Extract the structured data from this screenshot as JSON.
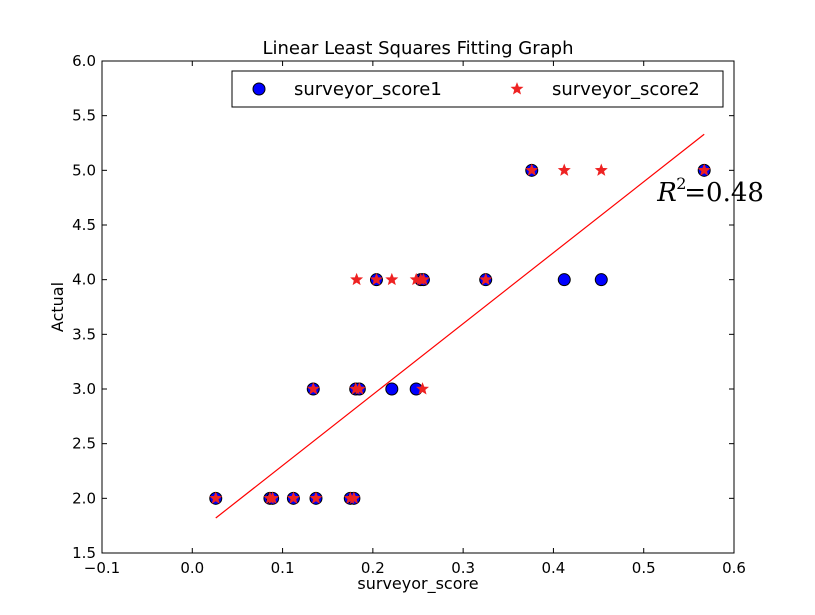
{
  "chart_data": {
    "type": "scatter",
    "title": "Linear Least Squares Fitting Graph",
    "xlabel": "surveyor_score",
    "ylabel": "Actual",
    "xlim": [
      -0.1,
      0.6
    ],
    "ylim": [
      1.5,
      6.0
    ],
    "xticks": [
      "−0.1",
      "0.0",
      "0.1",
      "0.2",
      "0.3",
      "0.4",
      "0.5",
      "0.6"
    ],
    "yticks": [
      "1.5",
      "2.0",
      "2.5",
      "3.0",
      "3.5",
      "4.0",
      "4.5",
      "5.0",
      "5.5",
      "6.0"
    ],
    "grid": false,
    "legend_position": "top-right",
    "series": [
      {
        "name": "surveyor_score1",
        "marker": "circle",
        "color": "#0000ff",
        "points": [
          [
            0.026,
            2.0
          ],
          [
            0.086,
            2.0
          ],
          [
            0.089,
            2.0
          ],
          [
            0.112,
            2.0
          ],
          [
            0.137,
            2.0
          ],
          [
            0.175,
            2.0
          ],
          [
            0.179,
            2.0
          ],
          [
            0.134,
            3.0
          ],
          [
            0.181,
            3.0
          ],
          [
            0.185,
            3.0
          ],
          [
            0.221,
            3.0
          ],
          [
            0.248,
            3.0
          ],
          [
            0.204,
            4.0
          ],
          [
            0.253,
            4.0
          ],
          [
            0.256,
            4.0
          ],
          [
            0.325,
            4.0
          ],
          [
            0.412,
            4.0
          ],
          [
            0.453,
            4.0
          ],
          [
            0.376,
            5.0
          ],
          [
            0.567,
            5.0
          ]
        ]
      },
      {
        "name": "surveyor_score2",
        "marker": "star",
        "color": "#ee2222",
        "points": [
          [
            0.026,
            2.0
          ],
          [
            0.086,
            2.0
          ],
          [
            0.089,
            2.0
          ],
          [
            0.112,
            2.0
          ],
          [
            0.137,
            2.0
          ],
          [
            0.175,
            2.0
          ],
          [
            0.179,
            2.0
          ],
          [
            0.134,
            3.0
          ],
          [
            0.181,
            3.0
          ],
          [
            0.185,
            3.0
          ],
          [
            0.255,
            3.0
          ],
          [
            0.182,
            4.0
          ],
          [
            0.204,
            4.0
          ],
          [
            0.221,
            4.0
          ],
          [
            0.248,
            4.0
          ],
          [
            0.253,
            4.0
          ],
          [
            0.256,
            4.0
          ],
          [
            0.325,
            4.0
          ],
          [
            0.376,
            5.0
          ],
          [
            0.412,
            5.0
          ],
          [
            0.453,
            5.0
          ],
          [
            0.567,
            5.0
          ]
        ]
      }
    ],
    "fit_line": {
      "color": "#ff0000",
      "x": [
        0.026,
        0.567
      ],
      "y": [
        1.82,
        5.33
      ]
    },
    "annotation": {
      "base": "R",
      "superscript": "2",
      "text": " =0.48",
      "x": 0.515,
      "y": 4.72
    }
  }
}
